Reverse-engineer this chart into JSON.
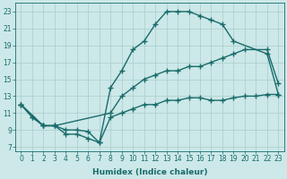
{
  "bg_color": "#cce8e8",
  "grid_color": "#aacccc",
  "line_color": "#1a6b6b",
  "line_width": 1.0,
  "marker": "+",
  "marker_size": 4,
  "marker_lw": 1.0,
  "xlabel": "Humidex (Indice chaleur)",
  "xlabel_fontsize": 6.5,
  "xlabel_bold": true,
  "xlim": [
    -0.5,
    23.5
  ],
  "ylim": [
    6.5,
    24.0
  ],
  "xticks": [
    0,
    1,
    2,
    3,
    4,
    5,
    6,
    7,
    8,
    9,
    10,
    11,
    12,
    13,
    14,
    15,
    16,
    17,
    18,
    19,
    20,
    21,
    22,
    23
  ],
  "yticks": [
    7,
    9,
    11,
    13,
    15,
    17,
    19,
    21,
    23
  ],
  "tick_labelsize": 5.5,
  "series": [
    {
      "x": [
        0,
        1,
        2,
        3,
        4,
        5,
        6,
        7,
        8,
        9,
        10,
        11,
        12,
        13,
        14,
        15,
        16,
        17,
        18,
        19,
        22,
        23
      ],
      "y": [
        12.0,
        10.5,
        9.5,
        9.5,
        8.5,
        8.5,
        8.0,
        7.5,
        14.0,
        16.0,
        18.5,
        19.5,
        21.5,
        23.0,
        23.0,
        23.0,
        22.5,
        22.0,
        21.5,
        19.5,
        18.0,
        13.2
      ]
    },
    {
      "x": [
        0,
        2,
        3,
        8,
        9,
        10,
        11,
        12,
        13,
        14,
        15,
        16,
        17,
        18,
        19,
        20,
        22,
        23
      ],
      "y": [
        12.0,
        9.5,
        9.5,
        11.0,
        13.0,
        14.0,
        15.0,
        15.5,
        16.0,
        16.0,
        16.5,
        16.5,
        17.0,
        17.5,
        18.0,
        18.5,
        18.5,
        14.5
      ]
    },
    {
      "x": [
        0,
        1,
        2,
        3,
        4,
        5,
        6,
        7,
        8,
        9,
        10,
        11,
        12,
        13,
        14,
        15,
        16,
        17,
        18,
        19,
        20,
        21,
        22,
        23
      ],
      "y": [
        12.0,
        10.5,
        9.5,
        9.5,
        9.0,
        9.0,
        8.8,
        7.5,
        10.5,
        11.0,
        11.5,
        12.0,
        12.0,
        12.5,
        12.5,
        12.8,
        12.8,
        12.5,
        12.5,
        12.8,
        13.0,
        13.0,
        13.2,
        13.2
      ]
    }
  ]
}
